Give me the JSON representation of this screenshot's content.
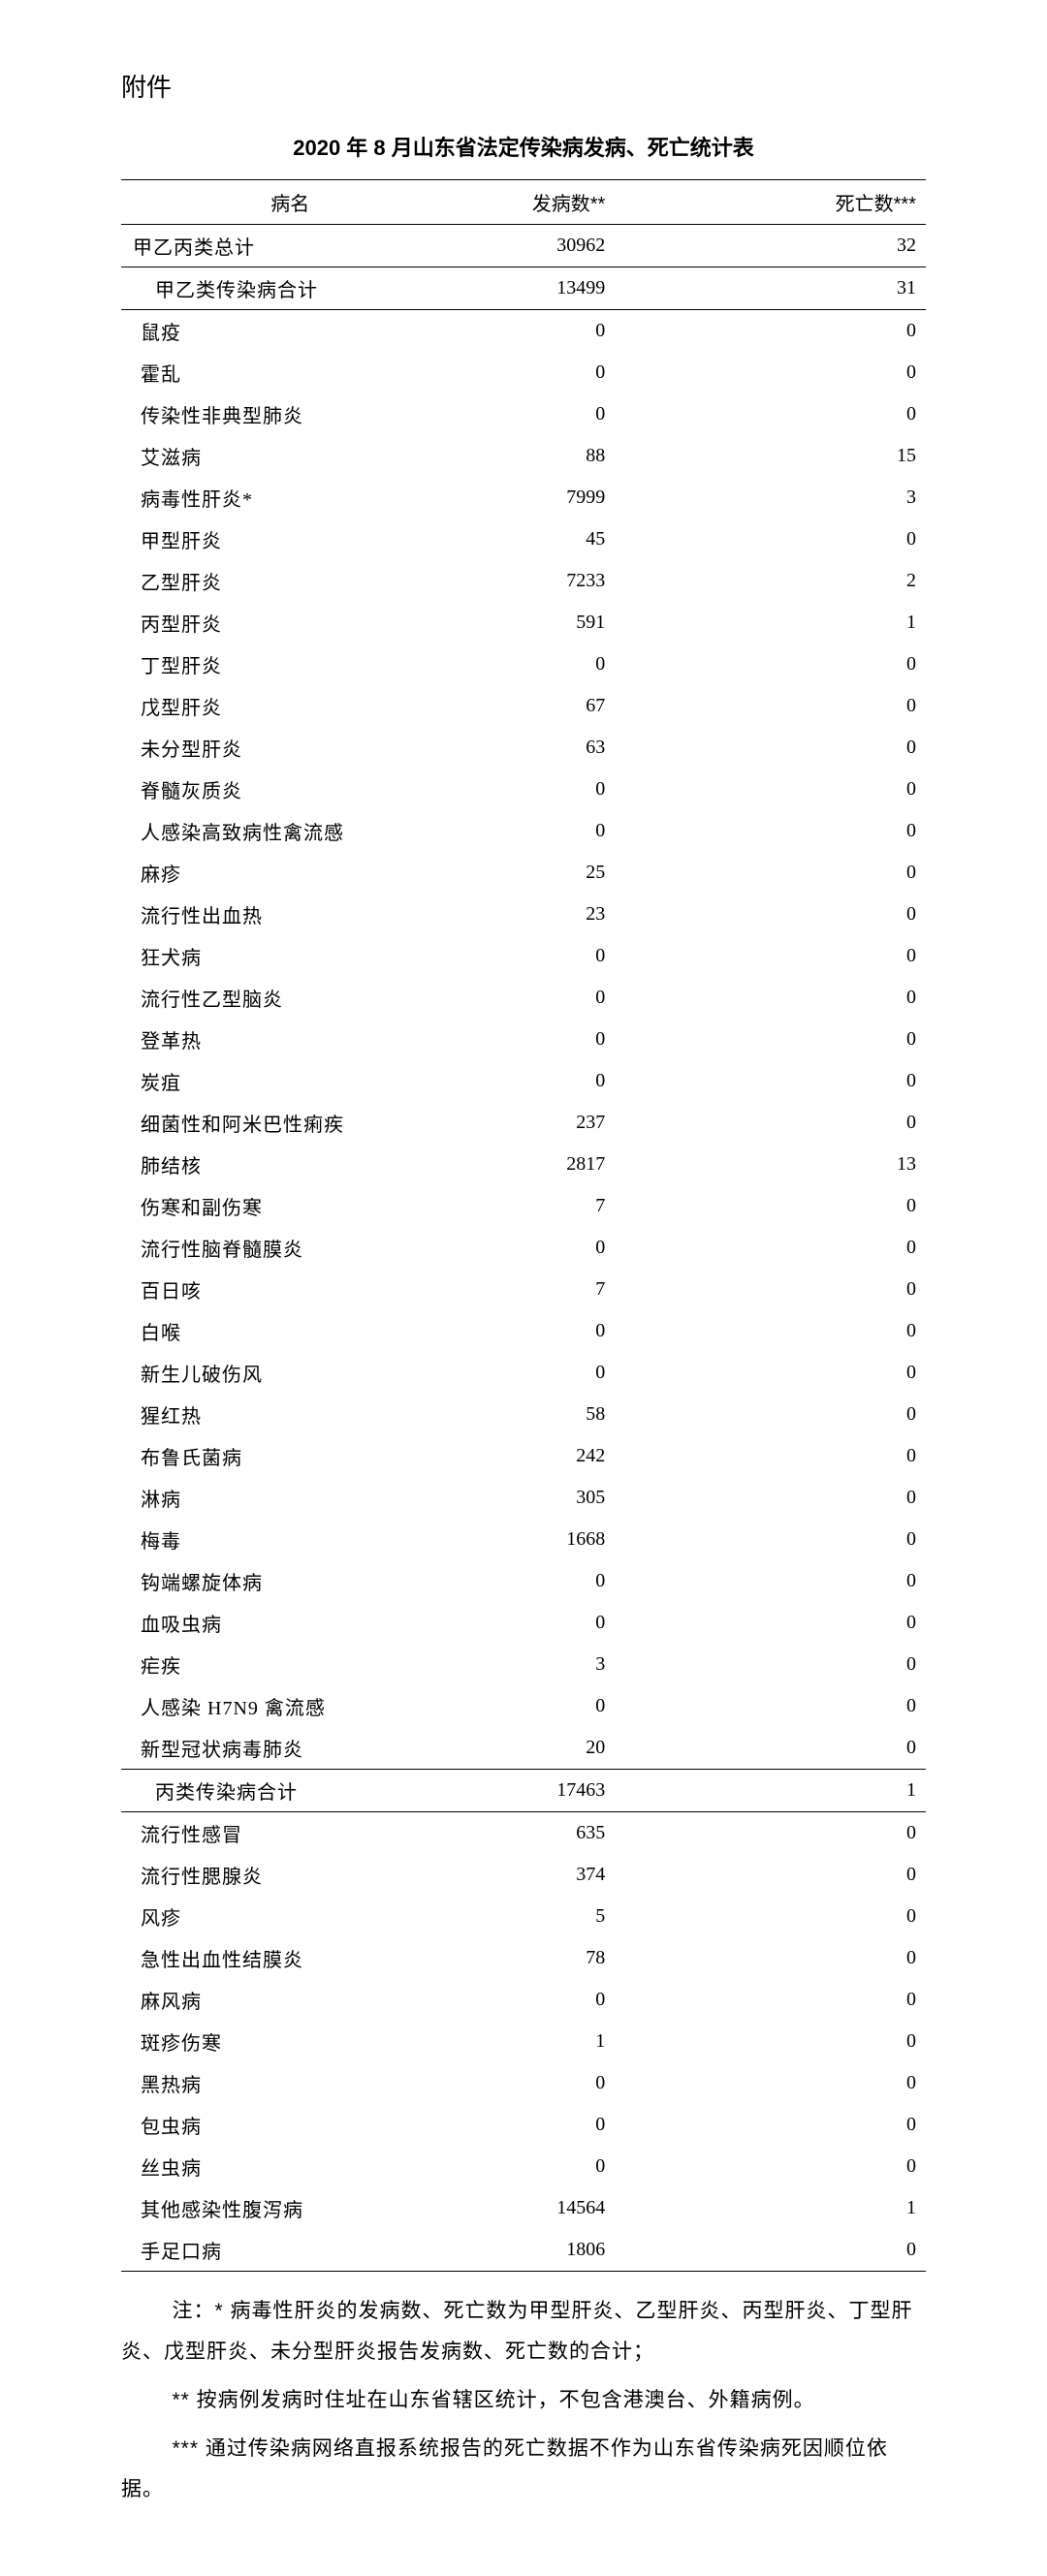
{
  "attachment_label": "附件",
  "title": "2020 年 8 月山东省法定传染病发病、死亡统计表",
  "table": {
    "headers": {
      "name": "病名",
      "cases": "发病数**",
      "deaths": "死亡数***"
    },
    "total_row": {
      "name": "甲乙丙类总计",
      "cases": "30962",
      "deaths": "32"
    },
    "subtotal1": {
      "name": "甲乙类传染病合计",
      "cases": "13499",
      "deaths": "31"
    },
    "group1": [
      {
        "name": "鼠疫",
        "cases": "0",
        "deaths": "0"
      },
      {
        "name": "霍乱",
        "cases": "0",
        "deaths": "0"
      },
      {
        "name": "传染性非典型肺炎",
        "cases": "0",
        "deaths": "0"
      },
      {
        "name": "艾滋病",
        "cases": "88",
        "deaths": "15"
      },
      {
        "name": "病毒性肝炎*",
        "cases": "7999",
        "deaths": "3"
      },
      {
        "name": "甲型肝炎",
        "cases": "45",
        "deaths": "0"
      },
      {
        "name": "乙型肝炎",
        "cases": "7233",
        "deaths": "2"
      },
      {
        "name": "丙型肝炎",
        "cases": "591",
        "deaths": "1"
      },
      {
        "name": "丁型肝炎",
        "cases": "0",
        "deaths": "0"
      },
      {
        "name": "戊型肝炎",
        "cases": "67",
        "deaths": "0"
      },
      {
        "name": "未分型肝炎",
        "cases": "63",
        "deaths": "0"
      },
      {
        "name": "脊髓灰质炎",
        "cases": "0",
        "deaths": "0"
      },
      {
        "name": "人感染高致病性禽流感",
        "cases": "0",
        "deaths": "0"
      },
      {
        "name": "麻疹",
        "cases": "25",
        "deaths": "0"
      },
      {
        "name": "流行性出血热",
        "cases": "23",
        "deaths": "0"
      },
      {
        "name": "狂犬病",
        "cases": "0",
        "deaths": "0"
      },
      {
        "name": "流行性乙型脑炎",
        "cases": "0",
        "deaths": "0"
      },
      {
        "name": "登革热",
        "cases": "0",
        "deaths": "0"
      },
      {
        "name": "炭疽",
        "cases": "0",
        "deaths": "0"
      },
      {
        "name": "细菌性和阿米巴性痢疾",
        "cases": "237",
        "deaths": "0"
      },
      {
        "name": "肺结核",
        "cases": "2817",
        "deaths": "13"
      },
      {
        "name": "伤寒和副伤寒",
        "cases": "7",
        "deaths": "0"
      },
      {
        "name": "流行性脑脊髓膜炎",
        "cases": "0",
        "deaths": "0"
      },
      {
        "name": "百日咳",
        "cases": "7",
        "deaths": "0"
      },
      {
        "name": "白喉",
        "cases": "0",
        "deaths": "0"
      },
      {
        "name": "新生儿破伤风",
        "cases": "0",
        "deaths": "0"
      },
      {
        "name": "猩红热",
        "cases": "58",
        "deaths": "0"
      },
      {
        "name": "布鲁氏菌病",
        "cases": "242",
        "deaths": "0"
      },
      {
        "name": "淋病",
        "cases": "305",
        "deaths": "0"
      },
      {
        "name": "梅毒",
        "cases": "1668",
        "deaths": "0"
      },
      {
        "name": "钩端螺旋体病",
        "cases": "0",
        "deaths": "0"
      },
      {
        "name": "血吸虫病",
        "cases": "0",
        "deaths": "0"
      },
      {
        "name": "疟疾",
        "cases": "3",
        "deaths": "0"
      },
      {
        "name": "人感染 H7N9 禽流感",
        "cases": "0",
        "deaths": "0"
      },
      {
        "name": "新型冠状病毒肺炎",
        "cases": "20",
        "deaths": "0"
      }
    ],
    "subtotal2": {
      "name": "丙类传染病合计",
      "cases": "17463",
      "deaths": "1"
    },
    "group2": [
      {
        "name": "流行性感冒",
        "cases": "635",
        "deaths": "0"
      },
      {
        "name": "流行性腮腺炎",
        "cases": "374",
        "deaths": "0"
      },
      {
        "name": "风疹",
        "cases": "5",
        "deaths": "0"
      },
      {
        "name": "急性出血性结膜炎",
        "cases": "78",
        "deaths": "0"
      },
      {
        "name": "麻风病",
        "cases": "0",
        "deaths": "0"
      },
      {
        "name": "斑疹伤寒",
        "cases": "1",
        "deaths": "0"
      },
      {
        "name": "黑热病",
        "cases": "0",
        "deaths": "0"
      },
      {
        "name": "包虫病",
        "cases": "0",
        "deaths": "0"
      },
      {
        "name": "丝虫病",
        "cases": "0",
        "deaths": "0"
      },
      {
        "name": "其他感染性腹泻病",
        "cases": "14564",
        "deaths": "1"
      },
      {
        "name": "手足口病",
        "cases": "1806",
        "deaths": "0"
      }
    ]
  },
  "notes": [
    "注：* 病毒性肝炎的发病数、死亡数为甲型肝炎、乙型肝炎、丙型肝炎、丁型肝炎、戊型肝炎、未分型肝炎报告发病数、死亡数的合计；",
    "** 按病例发病时住址在山东省辖区统计，不包含港澳台、外籍病例。",
    "*** 通过传染病网络直报系统报告的死亡数据不作为山东省传染病死因顺位依据。"
  ]
}
